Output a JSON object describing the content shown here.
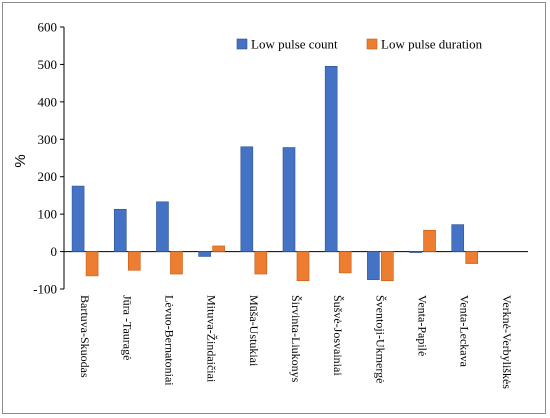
{
  "chart_data": {
    "type": "bar",
    "ylabel": "%",
    "xlabel": "",
    "ylim": [
      -100,
      600
    ],
    "yticks": [
      -100,
      0,
      100,
      200,
      300,
      400,
      500,
      600
    ],
    "grid": false,
    "legend_position": "top-right",
    "categories": [
      "Bartuva-Skuodas",
      "Jūra -Tauragė",
      "Lėvuo-Bernatoniai",
      "Mituva-Žindaičiai",
      "Mūša-Ustukiai",
      "Širvinta-Liukonys",
      "Šušvė-Josvainiai",
      "Šventoji-Ukmergė",
      "Venta-Papilė",
      "Venta-Leckava",
      "Verknė-Verbyliškės"
    ],
    "series": [
      {
        "name": "Low pulse count",
        "color": "#4472c4",
        "values": [
          175,
          113,
          133,
          -13,
          280,
          278,
          495,
          -75,
          -2,
          72,
          0
        ]
      },
      {
        "name": "Low pulse duration",
        "color": "#ed7d31",
        "values": [
          -65,
          -50,
          -60,
          15,
          -60,
          -78,
          -57,
          -78,
          57,
          -32,
          0
        ]
      }
    ]
  }
}
